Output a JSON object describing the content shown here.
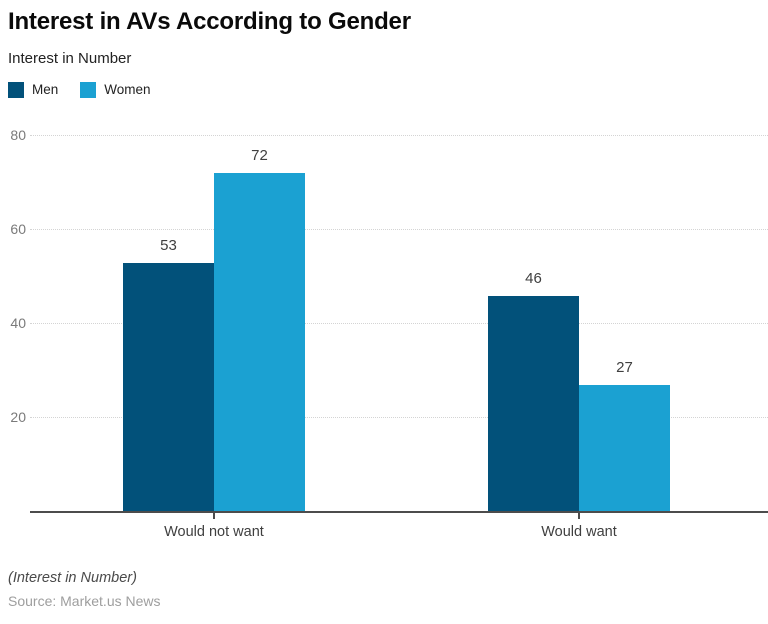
{
  "header": {
    "title": "Interest in AVs According to Gender",
    "subtitle": "Interest in Number"
  },
  "chart_data": {
    "type": "bar",
    "title": "Interest in AVs According to Gender",
    "subtitle": "Interest in Number",
    "categories": [
      "Would not want",
      "Would want"
    ],
    "series": [
      {
        "name": "Men",
        "color": "#02517a",
        "values": [
          53,
          46
        ]
      },
      {
        "name": "Women",
        "color": "#1ba1d2",
        "values": [
          72,
          27
        ]
      }
    ],
    "xlabel": "",
    "ylabel": "",
    "ylim": [
      0,
      80
    ],
    "yticks": [
      20,
      40,
      60,
      80
    ],
    "grid": "horizontal-dotted",
    "legend_position": "top-left",
    "bar_value_labels": true
  },
  "colors": {
    "men": "#02517a",
    "women": "#1ba1d2",
    "gridline": "#d4d4d4",
    "axis_line": "#4c4c4c",
    "tick_label": "#7a7a7a",
    "value_label": "#3f3f3f"
  },
  "footer": {
    "note": "(Interest in Number)",
    "source": "Source: Market.us News"
  }
}
